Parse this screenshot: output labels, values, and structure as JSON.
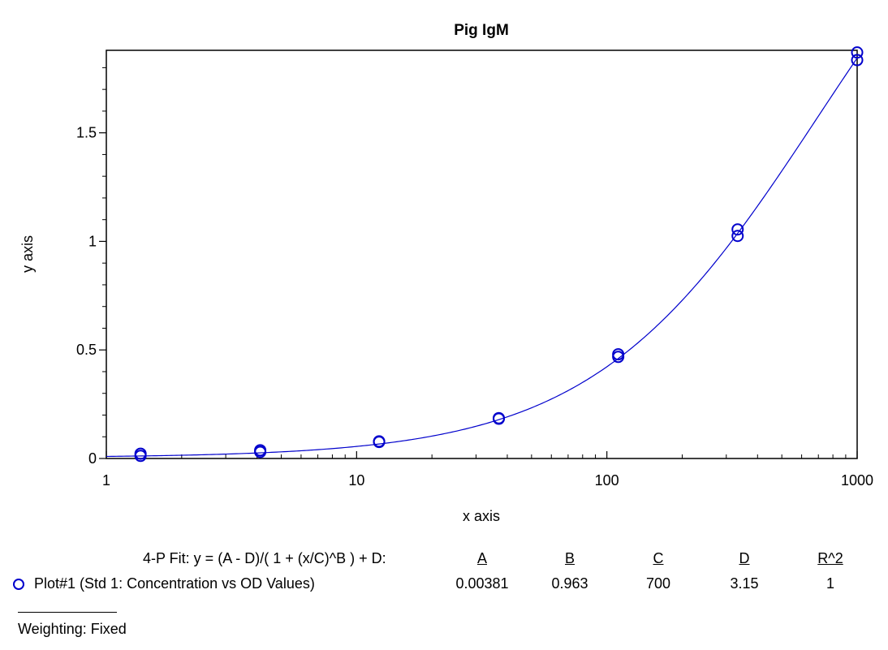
{
  "chart_data": {
    "type": "scatter",
    "title": "Pig IgM",
    "xlabel": "x axis",
    "ylabel": "y axis",
    "x_scale": "log",
    "xlim": [
      1,
      1000
    ],
    "ylim": [
      0,
      1.88
    ],
    "x_ticks": [
      1,
      10,
      100,
      1000
    ],
    "x_tick_labels": [
      "1",
      "10",
      "100",
      "1000"
    ],
    "y_ticks": [
      0,
      0.5,
      1,
      1.5
    ],
    "y_tick_labels": [
      "0",
      "0.5",
      "1",
      "1.5"
    ],
    "grid": false,
    "legend_position": "bottom-left",
    "series": [
      {
        "name": "Plot#1 (Std 1: Concentration vs OD Values)",
        "color": "#0000cc",
        "marker": "open-circle",
        "points": [
          {
            "x": 1.37,
            "y": 0.022
          },
          {
            "x": 1.37,
            "y": 0.012
          },
          {
            "x": 4.12,
            "y": 0.038
          },
          {
            "x": 4.12,
            "y": 0.03
          },
          {
            "x": 12.3,
            "y": 0.079
          },
          {
            "x": 12.3,
            "y": 0.076
          },
          {
            "x": 37.0,
            "y": 0.186
          },
          {
            "x": 37.0,
            "y": 0.183
          },
          {
            "x": 111,
            "y": 0.48
          },
          {
            "x": 111,
            "y": 0.468
          },
          {
            "x": 333,
            "y": 1.055
          },
          {
            "x": 333,
            "y": 1.025
          },
          {
            "x": 1000,
            "y": 1.87
          },
          {
            "x": 1000,
            "y": 1.835
          }
        ]
      }
    ],
    "fit": {
      "label": "4-P Fit: y = (A - D)/( 1 + (x/C)^B ) + D:",
      "columns": [
        "A",
        "B",
        "C",
        "D",
        "R^2"
      ],
      "values": [
        "0.00381",
        "0.963",
        "700",
        "3.15",
        "1"
      ],
      "params": {
        "A": 0.00381,
        "B": 0.963,
        "C": 700,
        "D": 3.15
      },
      "line_color": "#0000cc"
    },
    "weighting": "Weighting: Fixed"
  }
}
